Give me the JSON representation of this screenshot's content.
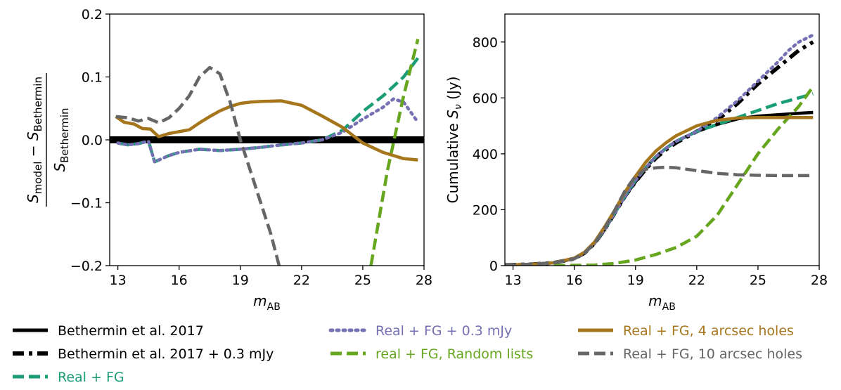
{
  "chart_data": [
    {
      "type": "line",
      "panel": "left",
      "title": "",
      "xlabel": "m_AB",
      "ylabel": "(S_model − S_Bethermin) / S_Bethermin",
      "xlim": [
        12.6,
        28.0
      ],
      "ylim": [
        -0.2,
        0.2
      ],
      "xticks": [
        13,
        16,
        19,
        22,
        25,
        28
      ],
      "yticks": [
        -0.2,
        -0.1,
        0.0,
        0.1,
        0.2
      ],
      "ytick_labels": [
        "−0.2",
        "−0.1",
        "0.0",
        "0.1",
        "0.2"
      ],
      "series": [
        {
          "key": "bethermin",
          "x": [
            12.6,
            28.0
          ],
          "y": [
            0,
            0
          ]
        },
        {
          "key": "real_fg",
          "x": [
            13,
            13.5,
            14,
            14.5,
            14.8,
            15.5,
            16,
            17,
            18,
            19,
            20,
            21,
            22,
            23,
            24,
            25,
            26,
            27,
            27.7
          ],
          "y": [
            -0.005,
            -0.008,
            -0.006,
            -0.002,
            -0.035,
            -0.025,
            -0.02,
            -0.015,
            -0.017,
            -0.015,
            -0.012,
            -0.008,
            -0.005,
            0.0,
            0.015,
            0.045,
            0.07,
            0.1,
            0.13
          ]
        },
        {
          "key": "real_fg_03",
          "x": [
            13,
            13.5,
            14,
            14.5,
            14.8,
            15.5,
            16,
            17,
            18,
            19,
            20,
            21,
            22,
            23,
            24,
            25,
            26,
            26.5,
            27,
            27.7
          ],
          "y": [
            -0.005,
            -0.008,
            -0.006,
            -0.002,
            -0.035,
            -0.025,
            -0.02,
            -0.015,
            -0.017,
            -0.015,
            -0.012,
            -0.008,
            -0.005,
            0.0,
            0.012,
            0.033,
            0.052,
            0.065,
            0.06,
            0.028
          ]
        },
        {
          "key": "random",
          "x": [
            25.4,
            26.2,
            27,
            27.7
          ],
          "y": [
            -0.2,
            -0.05,
            0.07,
            0.16
          ]
        },
        {
          "key": "holes4",
          "x": [
            12.9,
            13.3,
            13.8,
            14.2,
            14.6,
            15,
            15.5,
            16,
            16.5,
            17,
            17.5,
            18,
            18.5,
            19,
            19.5,
            20,
            21,
            22,
            23,
            24,
            25,
            26,
            27,
            27.7
          ],
          "y": [
            0.037,
            0.028,
            0.025,
            0.018,
            0.017,
            0.005,
            0.01,
            0.013,
            0.016,
            0.027,
            0.037,
            0.046,
            0.053,
            0.058,
            0.06,
            0.061,
            0.062,
            0.055,
            0.038,
            0.02,
            -0.005,
            -0.02,
            -0.03,
            -0.032
          ]
        },
        {
          "key": "holes10",
          "x": [
            12.9,
            13.5,
            14,
            14.5,
            15,
            15.5,
            16,
            16.5,
            17,
            17.5,
            18,
            18.5,
            19,
            19.5,
            20,
            20.5,
            20.9
          ],
          "y": [
            0.037,
            0.035,
            0.03,
            0.034,
            0.027,
            0.035,
            0.05,
            0.07,
            0.1,
            0.115,
            0.105,
            0.06,
            0.0,
            -0.05,
            -0.1,
            -0.15,
            -0.2
          ]
        }
      ]
    },
    {
      "type": "line",
      "panel": "right",
      "title": "",
      "xlabel": "m_AB",
      "ylabel": "Cumulative S_ν (Jy)",
      "xlim": [
        12.6,
        28.0
      ],
      "ylim": [
        0,
        900
      ],
      "xticks": [
        13,
        16,
        19,
        22,
        25,
        28
      ],
      "yticks": [
        0,
        200,
        400,
        600,
        800
      ],
      "series": [
        {
          "key": "bethermin",
          "x": [
            12.6,
            14,
            15,
            16,
            16.5,
            17,
            17.5,
            18,
            18.5,
            19,
            19.5,
            20,
            20.5,
            21,
            22,
            23,
            24,
            25,
            26,
            27,
            27.7
          ],
          "y": [
            2,
            5,
            10,
            25,
            45,
            80,
            130,
            190,
            250,
            300,
            350,
            390,
            420,
            445,
            480,
            505,
            525,
            535,
            540,
            545,
            548
          ]
        },
        {
          "key": "bethermin_03",
          "x": [
            12.6,
            14,
            15,
            16,
            16.5,
            17,
            17.5,
            18,
            18.5,
            19,
            19.5,
            20,
            20.5,
            21,
            22,
            23,
            24,
            25,
            26,
            27,
            27.7
          ],
          "y": [
            2,
            5,
            10,
            25,
            45,
            80,
            130,
            190,
            250,
            300,
            345,
            385,
            415,
            440,
            480,
            520,
            580,
            650,
            710,
            770,
            800
          ]
        },
        {
          "key": "real_fg",
          "x": [
            12.6,
            14,
            15,
            16,
            16.5,
            17,
            17.5,
            18,
            18.5,
            19,
            19.5,
            20,
            20.5,
            21,
            22,
            23,
            24,
            25,
            26,
            27,
            27.7
          ],
          "y": [
            2,
            5,
            10,
            25,
            45,
            80,
            130,
            190,
            250,
            305,
            350,
            390,
            420,
            445,
            480,
            505,
            530,
            555,
            580,
            600,
            615
          ]
        },
        {
          "key": "real_fg_03",
          "x": [
            12.6,
            14,
            15,
            16,
            16.5,
            17,
            17.5,
            18,
            18.5,
            19,
            19.5,
            20,
            20.5,
            21,
            22,
            23,
            24,
            25,
            26,
            26.5,
            27,
            27.7
          ],
          "y": [
            2,
            5,
            10,
            25,
            45,
            80,
            130,
            190,
            250,
            305,
            350,
            390,
            420,
            445,
            480,
            530,
            590,
            660,
            730,
            770,
            800,
            825
          ]
        },
        {
          "key": "random",
          "x": [
            15,
            16,
            17,
            18,
            19,
            20,
            21,
            22,
            23,
            24,
            25,
            26,
            27,
            27.7
          ],
          "y": [
            0,
            1,
            2,
            8,
            20,
            40,
            65,
            105,
            180,
            290,
            400,
            490,
            570,
            640
          ]
        },
        {
          "key": "holes4",
          "x": [
            12.6,
            14,
            15,
            16,
            16.5,
            17,
            17.5,
            18,
            18.5,
            19,
            19.5,
            20,
            20.5,
            21,
            22,
            23,
            24,
            25,
            26,
            27,
            27.7
          ],
          "y": [
            2,
            5,
            10,
            27,
            48,
            85,
            140,
            200,
            265,
            320,
            370,
            410,
            440,
            465,
            500,
            520,
            528,
            530,
            530,
            530,
            530
          ]
        },
        {
          "key": "holes10",
          "x": [
            12.6,
            14,
            15,
            16,
            16.5,
            17,
            17.5,
            18,
            18.5,
            19,
            19.5,
            20,
            20.5,
            21,
            22,
            23,
            24,
            25,
            26,
            27,
            27.7
          ],
          "y": [
            2,
            5,
            10,
            25,
            45,
            80,
            135,
            200,
            270,
            320,
            345,
            350,
            352,
            350,
            340,
            330,
            325,
            323,
            322,
            322,
            322
          ]
        }
      ]
    }
  ],
  "styles": {
    "bethermin": {
      "color": "#000000",
      "dash": "solid"
    },
    "bethermin_03": {
      "color": "#000000",
      "dash": "dashdot"
    },
    "real_fg": {
      "color": "#1b9e77",
      "dash": "dashed"
    },
    "real_fg_03": {
      "color": "#7570b3",
      "dash": "dotted"
    },
    "random": {
      "color": "#66a61e",
      "dash": "dashed"
    },
    "holes4": {
      "color": "#a6761d",
      "dash": "solid"
    },
    "holes10": {
      "color": "#666666",
      "dash": "dashed"
    }
  },
  "legend": [
    {
      "key": "bethermin",
      "label": "Bethermin et al. 2017",
      "text_color": "#000000"
    },
    {
      "key": "bethermin_03",
      "label": "Bethermin et al. 2017 + 0.3 mJy",
      "text_color": "#000000"
    },
    {
      "key": "real_fg",
      "label": "Real + FG",
      "text_color": "#1b9e77"
    },
    {
      "key": "real_fg_03",
      "label": "Real + FG + 0.3 mJy",
      "text_color": "#7570b3"
    },
    {
      "key": "random",
      "label": "real + FG, Random lists",
      "text_color": "#66a61e"
    },
    {
      "key": "holes4",
      "label": "Real + FG, 4 arcsec holes",
      "text_color": "#a6761d"
    },
    {
      "key": "holes10",
      "label": "Real + FG, 10 arcsec holes",
      "text_color": "#666666"
    }
  ]
}
